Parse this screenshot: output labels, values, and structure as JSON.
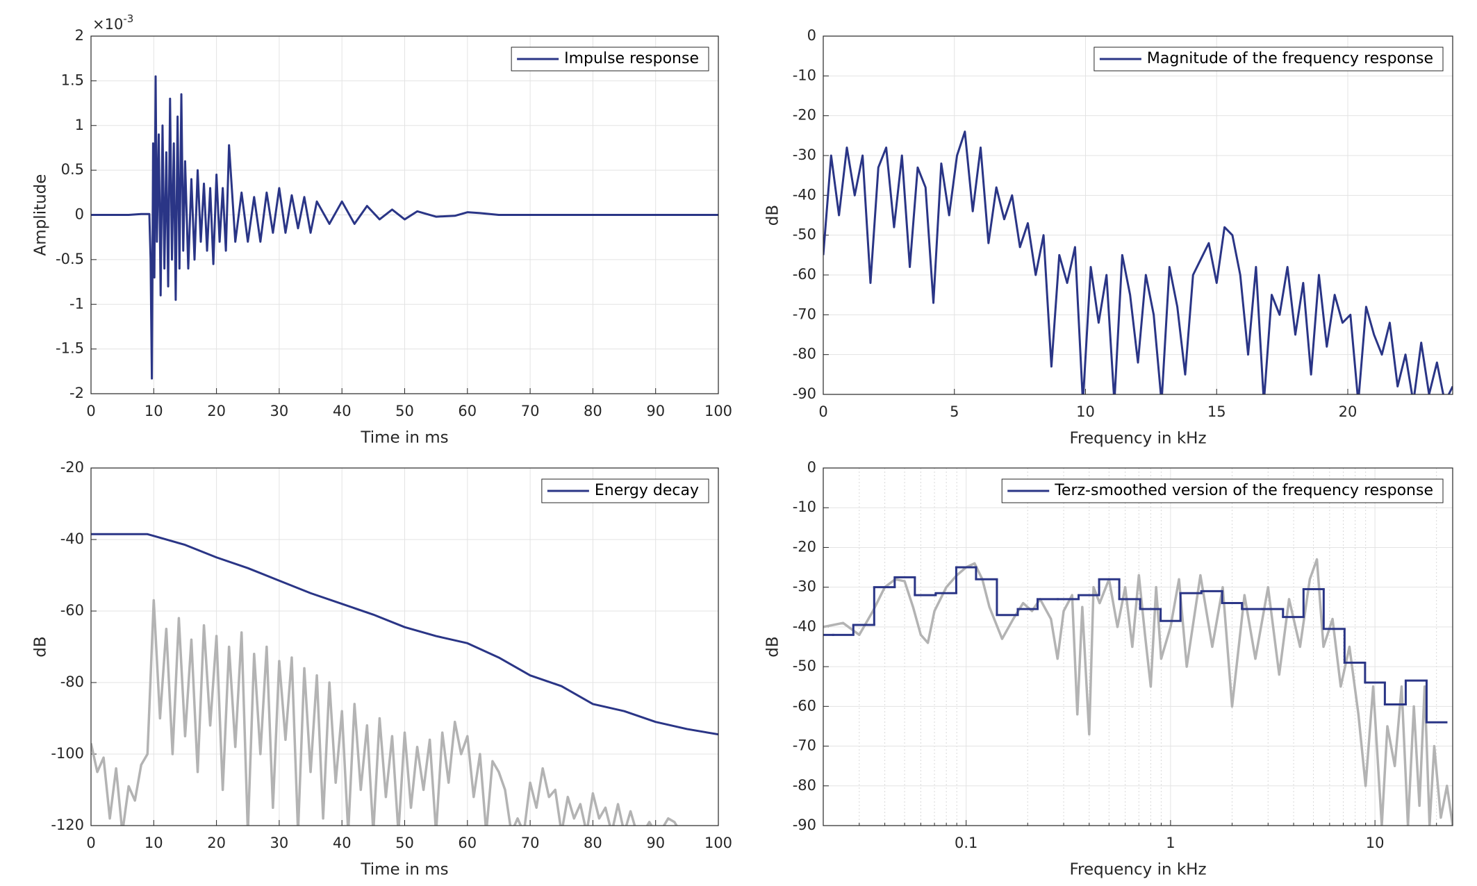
{
  "chart_data": [
    {
      "type": "line",
      "xlabel": "Time in ms",
      "ylabel": "Amplitude",
      "y_multiplier": {
        "base": "×10",
        "exponent": "-3"
      },
      "xlim": [
        0,
        100
      ],
      "ylim": [
        -2,
        2
      ],
      "xticks": [
        0,
        10,
        20,
        30,
        40,
        50,
        60,
        70,
        80,
        90,
        100
      ],
      "yticks": [
        -2,
        -1.5,
        -1,
        -0.5,
        0,
        0.5,
        1,
        1.5,
        2
      ],
      "grid": true,
      "legend": "upper right",
      "series": [
        {
          "name": "Impulse response",
          "color": "#2a3586",
          "x": [
            0,
            2,
            4,
            6,
            8,
            9.3,
            9.5,
            9.7,
            9.9,
            10.1,
            10.3,
            10.5,
            10.8,
            11.1,
            11.4,
            11.7,
            12,
            12.3,
            12.6,
            12.9,
            13.2,
            13.5,
            13.8,
            14.1,
            14.4,
            14.7,
            15,
            15.5,
            16,
            16.5,
            17,
            17.5,
            18,
            18.5,
            19,
            19.5,
            20,
            20.5,
            21,
            21.5,
            22,
            23,
            24,
            25,
            26,
            27,
            28,
            29,
            30,
            31,
            32,
            33,
            34,
            35,
            36,
            38,
            40,
            42,
            44,
            46,
            48,
            50,
            52,
            55,
            58,
            60,
            62,
            65,
            70,
            80,
            90,
            100
          ],
          "values": [
            0,
            0,
            0,
            0,
            0.01,
            0.01,
            -0.5,
            -1.83,
            0.8,
            -0.7,
            1.55,
            -0.3,
            0.9,
            -0.9,
            1.0,
            -0.6,
            0.7,
            -0.8,
            1.3,
            -0.5,
            0.8,
            -0.95,
            1.1,
            -0.6,
            1.35,
            -0.4,
            0.6,
            -0.6,
            0.4,
            -0.5,
            0.5,
            -0.3,
            0.35,
            -0.4,
            0.3,
            -0.55,
            0.45,
            -0.3,
            0.3,
            -0.4,
            0.78,
            -0.3,
            0.25,
            -0.3,
            0.2,
            -0.3,
            0.25,
            -0.2,
            0.3,
            -0.2,
            0.22,
            -0.15,
            0.2,
            -0.2,
            0.15,
            -0.1,
            0.15,
            -0.1,
            0.1,
            -0.05,
            0.06,
            -0.05,
            0.04,
            -0.02,
            -0.01,
            0.03,
            0.02,
            0,
            0,
            0,
            0,
            0
          ]
        }
      ]
    },
    {
      "type": "line",
      "xlabel": "Frequency in kHz",
      "ylabel": "dB",
      "xlim": [
        0,
        24
      ],
      "ylim": [
        -90,
        0
      ],
      "xticks": [
        0,
        5,
        10,
        15,
        20
      ],
      "yticks": [
        -90,
        -80,
        -70,
        -60,
        -50,
        -40,
        -30,
        -20,
        -10,
        0
      ],
      "grid": true,
      "legend": "upper right",
      "series": [
        {
          "name": "Magnitude of the frequency response",
          "color": "#2a3586",
          "x": [
            0,
            0.3,
            0.6,
            0.9,
            1.2,
            1.5,
            1.8,
            2.1,
            2.4,
            2.7,
            3,
            3.3,
            3.6,
            3.9,
            4.2,
            4.5,
            4.8,
            5.1,
            5.4,
            5.7,
            6,
            6.3,
            6.6,
            6.9,
            7.2,
            7.5,
            7.8,
            8.1,
            8.4,
            8.7,
            9,
            9.3,
            9.6,
            9.9,
            10.2,
            10.5,
            10.8,
            11.1,
            11.4,
            11.7,
            12,
            12.3,
            12.6,
            12.9,
            13.2,
            13.5,
            13.8,
            14.1,
            14.4,
            14.7,
            15,
            15.3,
            15.6,
            15.9,
            16.2,
            16.5,
            16.8,
            17.1,
            17.4,
            17.7,
            18,
            18.3,
            18.6,
            18.9,
            19.2,
            19.5,
            19.8,
            20.1,
            20.4,
            20.7,
            21,
            21.3,
            21.6,
            21.9,
            22.2,
            22.5,
            22.8,
            23.1,
            23.4,
            23.7,
            24
          ],
          "values": [
            -55,
            -30,
            -45,
            -28,
            -40,
            -30,
            -62,
            -33,
            -28,
            -48,
            -30,
            -58,
            -33,
            -38,
            -67,
            -32,
            -45,
            -30,
            -24,
            -44,
            -28,
            -52,
            -38,
            -46,
            -40,
            -53,
            -47,
            -60,
            -50,
            -83,
            -55,
            -62,
            -53,
            -92,
            -58,
            -72,
            -60,
            -92,
            -55,
            -65,
            -82,
            -60,
            -70,
            -92,
            -58,
            -68,
            -85,
            -60,
            -56,
            -52,
            -62,
            -48,
            -50,
            -60,
            -80,
            -58,
            -92,
            -65,
            -70,
            -58,
            -75,
            -62,
            -85,
            -60,
            -78,
            -65,
            -72,
            -70,
            -92,
            -68,
            -75,
            -80,
            -72,
            -88,
            -80,
            -92,
            -77,
            -90,
            -82,
            -92,
            -88
          ]
        }
      ]
    },
    {
      "type": "line",
      "xlabel": "Time in ms",
      "ylabel": "dB",
      "xlim": [
        0,
        100
      ],
      "ylim": [
        -120,
        -20
      ],
      "xticks": [
        0,
        10,
        20,
        30,
        40,
        50,
        60,
        70,
        80,
        90,
        100
      ],
      "yticks": [
        -120,
        -100,
        -80,
        -60,
        -40,
        -20
      ],
      "grid": true,
      "legend": "upper right",
      "series": [
        {
          "color": "#b3b3b3",
          "x": [
            0,
            1,
            2,
            3,
            4,
            5,
            6,
            7,
            8,
            9,
            10,
            11,
            12,
            13,
            14,
            15,
            16,
            17,
            18,
            19,
            20,
            21,
            22,
            23,
            24,
            25,
            26,
            27,
            28,
            29,
            30,
            31,
            32,
            33,
            34,
            35,
            36,
            37,
            38,
            39,
            40,
            41,
            42,
            43,
            44,
            45,
            46,
            47,
            48,
            49,
            50,
            51,
            52,
            53,
            54,
            55,
            56,
            57,
            58,
            59,
            60,
            61,
            62,
            63,
            64,
            65,
            66,
            67,
            68,
            69,
            70,
            71,
            72,
            73,
            74,
            75,
            76,
            77,
            78,
            79,
            80,
            81,
            82,
            83,
            84,
            85,
            86,
            87,
            88,
            89,
            90,
            91,
            92,
            93,
            94
          ],
          "values": [
            -97,
            -105,
            -101,
            -118,
            -104,
            -122,
            -109,
            -113,
            -103,
            -100,
            -57,
            -90,
            -65,
            -100,
            -62,
            -95,
            -68,
            -105,
            -64,
            -92,
            -67,
            -110,
            -70,
            -98,
            -66,
            -122,
            -72,
            -100,
            -70,
            -115,
            -74,
            -96,
            -73,
            -122,
            -76,
            -105,
            -78,
            -118,
            -80,
            -108,
            -88,
            -122,
            -86,
            -110,
            -92,
            -122,
            -90,
            -112,
            -95,
            -122,
            -94,
            -115,
            -98,
            -110,
            -96,
            -122,
            -94,
            -108,
            -91,
            -100,
            -95,
            -112,
            -100,
            -122,
            -102,
            -105,
            -110,
            -122,
            -118,
            -122,
            -108,
            -115,
            -104,
            -112,
            -110,
            -122,
            -112,
            -118,
            -114,
            -122,
            -111,
            -118,
            -115,
            -122,
            -114,
            -122,
            -116,
            -122,
            -122,
            -119,
            -122,
            -121,
            -118,
            -119,
            -122
          ]
        },
        {
          "name": "Energy decay",
          "color": "#2a3586",
          "x": [
            0,
            9,
            10,
            15,
            20,
            25,
            30,
            35,
            40,
            45,
            50,
            55,
            60,
            65,
            70,
            75,
            80,
            85,
            90,
            95,
            100
          ],
          "values": [
            -38.5,
            -38.5,
            -39,
            -41.5,
            -45,
            -48,
            -51.5,
            -55,
            -58,
            -61,
            -64.5,
            -67,
            -69,
            -73,
            -78,
            -81,
            -86,
            -88,
            -91,
            -93,
            -94.5
          ]
        }
      ]
    },
    {
      "type": "line",
      "xlabel": "Frequency in kHz",
      "ylabel": "dB",
      "xlog": true,
      "xlim": [
        0.02,
        24
      ],
      "ylim": [
        -90,
        0
      ],
      "xticks": [
        0.1,
        1,
        10
      ],
      "xminorticks": [
        0.03,
        0.04,
        0.05,
        0.06,
        0.07,
        0.08,
        0.09,
        0.2,
        0.3,
        0.4,
        0.5,
        0.6,
        0.7,
        0.8,
        0.9,
        2,
        3,
        4,
        5,
        6,
        7,
        8,
        9,
        20
      ],
      "yticks": [
        -90,
        -80,
        -70,
        -60,
        -50,
        -40,
        -30,
        -20,
        -10,
        0
      ],
      "grid": true,
      "legend": "upper right",
      "series": [
        {
          "color": "#b3b3b3",
          "x": [
            0.02,
            0.025,
            0.03,
            0.035,
            0.04,
            0.045,
            0.05,
            0.055,
            0.06,
            0.065,
            0.07,
            0.08,
            0.09,
            0.1,
            0.11,
            0.12,
            0.13,
            0.15,
            0.17,
            0.19,
            0.21,
            0.23,
            0.26,
            0.28,
            0.3,
            0.33,
            0.35,
            0.37,
            0.4,
            0.42,
            0.45,
            0.5,
            0.55,
            0.6,
            0.65,
            0.7,
            0.75,
            0.8,
            0.85,
            0.9,
            1.0,
            1.1,
            1.2,
            1.4,
            1.6,
            1.8,
            2.0,
            2.3,
            2.6,
            3.0,
            3.4,
            3.8,
            4.3,
            4.8,
            5.2,
            5.6,
            6.2,
            6.8,
            7.5,
            8.3,
            9.0,
            9.8,
            10.8,
            11.5,
            12.5,
            13.5,
            14.5,
            15.5,
            16.5,
            17.5,
            18.5,
            19.5,
            21,
            22.5,
            24
          ],
          "values": [
            -40,
            -39,
            -42,
            -36,
            -30,
            -28,
            -28.5,
            -35,
            -42,
            -44,
            -36,
            -30,
            -27,
            -25,
            -24,
            -28,
            -35,
            -43,
            -38,
            -34,
            -36,
            -33,
            -38,
            -48,
            -36,
            -32,
            -62,
            -35,
            -67,
            -30,
            -34,
            -28,
            -40,
            -30,
            -45,
            -27,
            -42,
            -55,
            -30,
            -48,
            -40,
            -28,
            -50,
            -27,
            -45,
            -30,
            -60,
            -32,
            -48,
            -30,
            -52,
            -33,
            -45,
            -28,
            -23,
            -45,
            -38,
            -55,
            -45,
            -62,
            -80,
            -55,
            -90,
            -65,
            -75,
            -55,
            -90,
            -60,
            -85,
            -55,
            -90,
            -70,
            -88,
            -80,
            -90
          ]
        },
        {
          "name": "Terz-smoothed version of the frequency response",
          "color": "#2a3586",
          "step": true,
          "x": [
            0.02,
            0.025,
            0.0315,
            0.04,
            0.05,
            0.063,
            0.08,
            0.1,
            0.125,
            0.16,
            0.2,
            0.25,
            0.315,
            0.4,
            0.5,
            0.63,
            0.8,
            1,
            1.25,
            1.6,
            2,
            2.5,
            3.15,
            4,
            5,
            6.3,
            8,
            10,
            12.5,
            16,
            20
          ],
          "values": [
            -42,
            -42,
            -39.5,
            -30,
            -27.5,
            -32,
            -31.5,
            -25,
            -28,
            -37,
            -35.5,
            -33,
            -33,
            -32,
            -28,
            -33,
            -35.5,
            -38.5,
            -31.5,
            -31,
            -34,
            -35.5,
            -35.5,
            -37.5,
            -30.5,
            -40.5,
            -49,
            -54,
            -59.5,
            -53.5,
            -64
          ]
        }
      ]
    }
  ]
}
